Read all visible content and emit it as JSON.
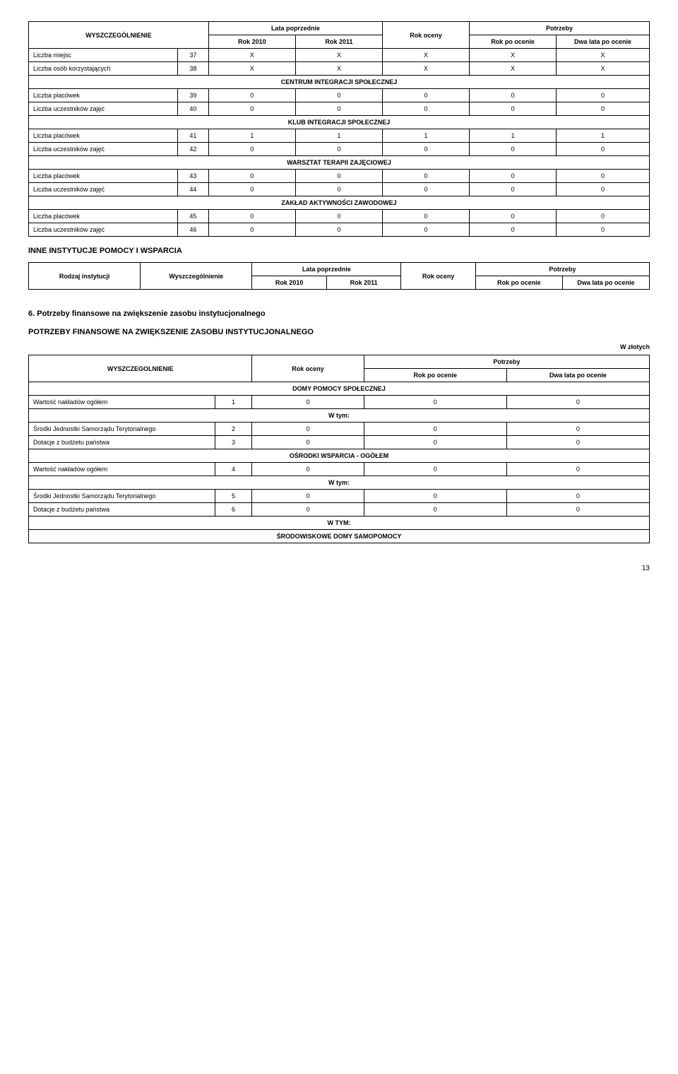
{
  "table1": {
    "headers": {
      "wysz": "WYSZCZEGÓLNIENIE",
      "lata": "Lata poprzednie",
      "rok2010": "Rok 2010",
      "rok2011": "Rok 2011",
      "rokoceny": "Rok oceny",
      "potrzeby": "Potrzeby",
      "rokpo": "Rok po ocenie",
      "dwalata": "Dwa lata po ocenie"
    },
    "rows": [
      {
        "label": "Liczba miejsc",
        "n": "37",
        "v": [
          "X",
          "X",
          "X",
          "X",
          "X"
        ]
      },
      {
        "label": "Liczba osób korzystających",
        "n": "38",
        "v": [
          "X",
          "X",
          "X",
          "X",
          "X"
        ]
      }
    ],
    "sections": [
      {
        "title": "CENTRUM INTEGRACJI SPOŁECZNEJ",
        "rows": [
          {
            "label": "Liczba placówek",
            "n": "39",
            "v": [
              "0",
              "0",
              "0",
              "0",
              "0"
            ]
          },
          {
            "label": "Liczba uczestników zajęć",
            "n": "40",
            "v": [
              "0",
              "0",
              "0",
              "0",
              "0"
            ]
          }
        ]
      },
      {
        "title": "KLUB INTEGRACJI SPOŁECZNEJ",
        "rows": [
          {
            "label": "Liczba placówek",
            "n": "41",
            "v": [
              "1",
              "1",
              "1",
              "1",
              "1"
            ]
          },
          {
            "label": "Liczba uczestników zajęć",
            "n": "42",
            "v": [
              "0",
              "0",
              "0",
              "0",
              "0"
            ]
          }
        ]
      },
      {
        "title": "WARSZTAT TERAPII ZAJĘCIOWEJ",
        "rows": [
          {
            "label": "Liczba placówek",
            "n": "43",
            "v": [
              "0",
              "0",
              "0",
              "0",
              "0"
            ]
          },
          {
            "label": "Liczba uczestników zajęć",
            "n": "44",
            "v": [
              "0",
              "0",
              "0",
              "0",
              "0"
            ]
          }
        ]
      },
      {
        "title": "ZAKŁAD AKTYWNOŚCI ZAWODOWEJ",
        "rows": [
          {
            "label": "Liczba placówek",
            "n": "45",
            "v": [
              "0",
              "0",
              "0",
              "0",
              "0"
            ]
          },
          {
            "label": "Liczba uczestników zajęć",
            "n": "46",
            "v": [
              "0",
              "0",
              "0",
              "0",
              "0"
            ]
          }
        ]
      }
    ]
  },
  "sec2": {
    "title": "INNE INSTYTUCJE POMOCY I WSPARCIA",
    "headers": {
      "rodzaj": "Rodzaj instytucji",
      "wysz": "Wyszczególnienie",
      "lata": "Lata poprzednie",
      "rok2010": "Rok 2010",
      "rok2011": "Rok 2011",
      "rokoceny": "Rok oceny",
      "potrzeby": "Potrzeby",
      "rokpo": "Rok po ocenie",
      "dwalata": "Dwa lata po ocenie"
    }
  },
  "sec3": {
    "title": "6. Potrzeby finansowe na zwiększenie  zasobu instytucjonalnego",
    "subtitle": "POTRZEBY FINANSOWE NA ZWIĘKSZENIE ZASOBU INSTYTUCJONALNEGO",
    "unit": "W złotych",
    "headers": {
      "wysz": "WYSZCZEGOLNIENIE",
      "rokoceny": "Rok oceny",
      "potrzeby": "Potrzeby",
      "rokpo": "Rok po ocenie",
      "dwalata": "Dwa lata po ocenie"
    },
    "groups": [
      {
        "title": "DOMY POMOCY SPOŁECZNEJ",
        "rows": [
          {
            "label": "Wartość nakładów ogółem",
            "n": "1",
            "v": [
              "0",
              "0",
              "0"
            ]
          }
        ],
        "wtym": "W tym:",
        "subrows": [
          {
            "label": "Środki Jednostki Samorządu Terytorialnego",
            "n": "2",
            "v": [
              "0",
              "0",
              "0"
            ]
          },
          {
            "label": "Dotacje z budżetu państwa",
            "n": "3",
            "v": [
              "0",
              "0",
              "0"
            ]
          }
        ]
      },
      {
        "title": "OŚRODKI WSPARCIA - OGÓŁEM",
        "rows": [
          {
            "label": "Wartość nakładów ogółem",
            "n": "4",
            "v": [
              "0",
              "0",
              "0"
            ]
          }
        ],
        "wtym": "W tym:",
        "subrows": [
          {
            "label": "Środki Jednostki Samorządu Terytorialnego",
            "n": "5",
            "v": [
              "0",
              "0",
              "0"
            ]
          },
          {
            "label": "Dotacje z budżetu państwa",
            "n": "6",
            "v": [
              "0",
              "0",
              "0"
            ]
          }
        ]
      }
    ],
    "wtymcap": "W TYM:",
    "finalgroup": "ŚRODOWISKOWE DOMY SAMOPOMOCY"
  },
  "pagenum": "13"
}
